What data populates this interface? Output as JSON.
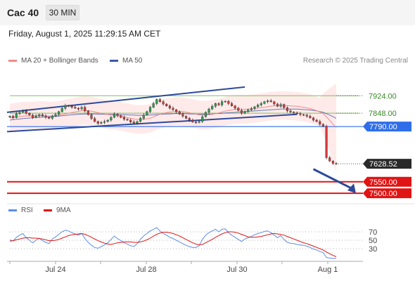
{
  "header": {
    "symbol": "Cac 40",
    "timeframe": "30 MIN"
  },
  "timestamp": "Friday, August 1, 2025 11:29:15 AM CET",
  "legend": {
    "bb_label": "MA 20 + Bollinger Bands",
    "ma50_label": "MA 50",
    "rsi_label": "RSI",
    "rsi_ma_label": "9MA"
  },
  "credit": "Research © 2025 Trading Central",
  "colors": {
    "bullish": "#2e9e52",
    "bearish": "#d23a3a",
    "bollinger": "#ffd9d9",
    "ma20": "#f28a8a",
    "ma50": "#3b5ba8",
    "channel": "#2b4a9a",
    "support": "#e01414",
    "pivot": "#2f6ee8",
    "resistance": "#7ac25a"
  },
  "chart_data": [
    {
      "type": "candlestick",
      "title": "Cac 40",
      "timeframe": "30 MIN",
      "x_tick_labels": [
        "Jul 24",
        "Jul 28",
        "Jul 30",
        "Aug 1"
      ],
      "ylim": [
        7470,
        8050
      ],
      "levels": [
        {
          "value": 7924.0,
          "label": "7924.00",
          "kind": "resistance"
        },
        {
          "value": 7848.0,
          "label": "7848.00",
          "kind": "resistance"
        },
        {
          "value": 7790.0,
          "label": "7790.00",
          "kind": "pivot"
        },
        {
          "value": 7628.52,
          "label": "7628.52",
          "kind": "last"
        },
        {
          "value": 7550.0,
          "label": "7550.00",
          "kind": "support"
        },
        {
          "value": 7500.0,
          "label": "7500.00",
          "kind": "support"
        }
      ],
      "closes": [
        7835,
        7829,
        7846,
        7852,
        7858,
        7848,
        7840,
        7830,
        7836,
        7842,
        7836,
        7830,
        7826,
        7836,
        7843,
        7855,
        7869,
        7881,
        7879,
        7874,
        7870,
        7866,
        7874,
        7858,
        7842,
        7825,
        7812,
        7804,
        7808,
        7812,
        7818,
        7830,
        7844,
        7837,
        7830,
        7822,
        7818,
        7810,
        7805,
        7812,
        7826,
        7840,
        7855,
        7874,
        7890,
        7908,
        7898,
        7888,
        7880,
        7870,
        7863,
        7854,
        7844,
        7835,
        7826,
        7817,
        7810,
        7808,
        7812,
        7833,
        7852,
        7866,
        7878,
        7890,
        7884,
        7898,
        7900,
        7890,
        7880,
        7870,
        7860,
        7848,
        7856,
        7862,
        7868,
        7876,
        7884,
        7890,
        7898,
        7902,
        7898,
        7888,
        7878,
        7886,
        7872,
        7858,
        7853,
        7850,
        7846,
        7842,
        7840,
        7835,
        7828,
        7818,
        7812,
        7800,
        7792,
        7655,
        7640,
        7630,
        7628
      ],
      "series": [
        {
          "name": "MA 20",
          "values": [
            7828,
            7829,
            7831,
            7833,
            7835,
            7836,
            7836,
            7836,
            7837,
            7838,
            7838,
            7837,
            7836,
            7836,
            7837,
            7839,
            7842,
            7845,
            7848,
            7851,
            7854,
            7856,
            7859,
            7860,
            7859,
            7857,
            7854,
            7851,
            7848,
            7845,
            7842,
            7840,
            7839,
            7837,
            7835,
            7832,
            7829,
            7826,
            7823,
            7821,
            7821,
            7822,
            7824,
            7827,
            7832,
            7838,
            7843,
            7847,
            7851,
            7853,
            7855,
            7856,
            7856,
            7855,
            7853,
            7850,
            7847,
            7844,
            7841,
            7840,
            7840,
            7841,
            7843,
            7846,
            7849,
            7853,
            7857,
            7860,
            7862,
            7864,
            7865,
            7865,
            7865,
            7866,
            7867,
            7868,
            7870,
            7872,
            7874,
            7877,
            7879,
            7880,
            7881,
            7882,
            7882,
            7881,
            7880,
            7879,
            7878,
            7876,
            7874,
            7871,
            7868,
            7864,
            7859,
            7853,
            7846,
            7832,
            7817,
            7801,
            7785
          ]
        },
        {
          "name": "MA 50",
          "values": [
            7818,
            7820,
            7822,
            7823,
            7825,
            7826,
            7827,
            7828,
            7829,
            7830,
            7831,
            7832,
            7832,
            7833,
            7834,
            7835,
            7837,
            7838,
            7840,
            7841,
            7842,
            7843,
            7844,
            7845,
            7845,
            7845,
            7845,
            7844,
            7844,
            7843,
            7843,
            7843,
            7843,
            7843,
            7842,
            7842,
            7841,
            7840,
            7840,
            7839,
            7839,
            7839,
            7840,
            7840,
            7841,
            7842,
            7843,
            7844,
            7845,
            7845,
            7846,
            7846,
            7846,
            7846,
            7846,
            7845,
            7845,
            7844,
            7844,
            7844,
            7844,
            7844,
            7845,
            7846,
            7847,
            7848,
            7849,
            7850,
            7851,
            7852,
            7853,
            7854,
            7855,
            7856,
            7857,
            7858,
            7859,
            7860,
            7861,
            7862,
            7863,
            7864,
            7865,
            7866,
            7866,
            7866,
            7866,
            7866,
            7866,
            7865,
            7864,
            7863,
            7862,
            7860,
            7858,
            7855,
            7852,
            7846,
            7840,
            7833,
            7826
          ]
        }
      ],
      "channel": {
        "upper": {
          "from": [
            0,
            7852
          ],
          "to": [
            72,
            7962
          ]
        },
        "lower": {
          "from": [
            0,
            7768
          ],
          "to": [
            88,
            7843
          ]
        }
      },
      "projection": {
        "from": [
          93,
          7605
        ],
        "to": [
          100,
          7500
        ]
      }
    },
    {
      "type": "line",
      "title": "RSI",
      "ylim": [
        0,
        100
      ],
      "y_ticks": [
        70,
        50,
        30
      ],
      "series": [
        {
          "name": "RSI",
          "values": [
            51,
            48,
            57,
            62,
            66,
            56,
            50,
            44,
            50,
            55,
            49,
            45,
            42,
            53,
            58,
            64,
            70,
            74,
            72,
            68,
            65,
            62,
            66,
            54,
            45,
            38,
            33,
            31,
            35,
            39,
            44,
            52,
            60,
            54,
            49,
            44,
            41,
            37,
            35,
            42,
            52,
            60,
            66,
            72,
            76,
            80,
            72,
            66,
            62,
            57,
            54,
            50,
            46,
            42,
            38,
            35,
            33,
            33,
            37,
            52,
            62,
            68,
            72,
            76,
            70,
            76,
            77,
            68,
            62,
            57,
            52,
            47,
            53,
            56,
            59,
            63,
            66,
            68,
            71,
            72,
            68,
            62,
            56,
            61,
            52,
            45,
            43,
            42,
            40,
            39,
            38,
            36,
            33,
            29,
            27,
            23,
            21,
            9,
            8,
            7,
            7
          ]
        },
        {
          "name": "9MA",
          "values": [
            48,
            49,
            51,
            53,
            55,
            56,
            56,
            55,
            55,
            54,
            53,
            51,
            49,
            49,
            50,
            52,
            55,
            58,
            61,
            63,
            64,
            65,
            66,
            64,
            61,
            57,
            53,
            49,
            46,
            43,
            41,
            40,
            42,
            44,
            45,
            46,
            46,
            46,
            45,
            45,
            46,
            48,
            51,
            55,
            60,
            64,
            67,
            69,
            69,
            68,
            66,
            63,
            60,
            56,
            52,
            48,
            44,
            41,
            39,
            40,
            44,
            48,
            52,
            57,
            61,
            65,
            68,
            70,
            70,
            69,
            67,
            64,
            61,
            58,
            57,
            57,
            58,
            59,
            61,
            63,
            65,
            66,
            65,
            64,
            62,
            59,
            56,
            53,
            50,
            47,
            44,
            42,
            39,
            36,
            33,
            30,
            27,
            22,
            18,
            14,
            11
          ]
        }
      ]
    }
  ]
}
